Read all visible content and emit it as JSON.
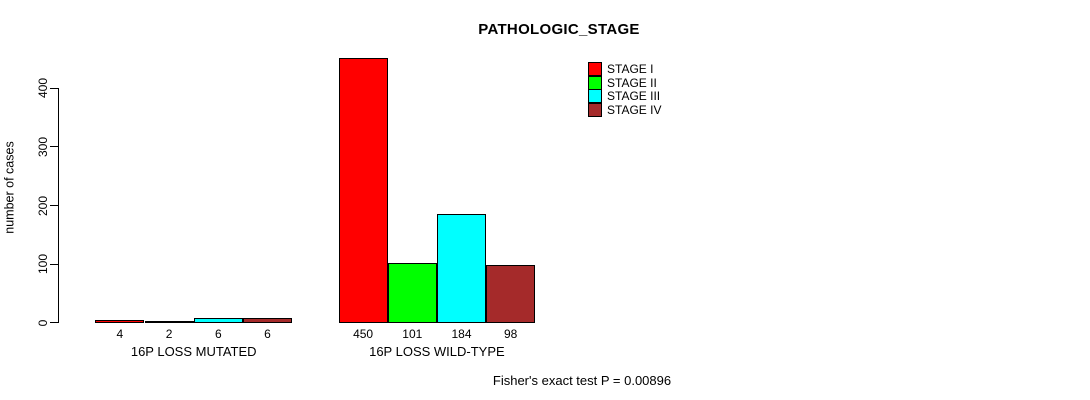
{
  "chart_data": {
    "type": "bar",
    "title": "PATHOLOGIC_STAGE",
    "xlabel": "",
    "ylabel": "number of cases",
    "ylim": [
      0,
      450
    ],
    "yticks": [
      0,
      100,
      200,
      300,
      400
    ],
    "grid": false,
    "legend_position": "top-right",
    "categories": [
      "16P LOSS MUTATED",
      "16P LOSS WILD-TYPE"
    ],
    "series": [
      {
        "name": "STAGE I",
        "color": "#FF0000",
        "values": [
          4,
          450
        ]
      },
      {
        "name": "STAGE II",
        "color": "#00FF00",
        "values": [
          2,
          101
        ]
      },
      {
        "name": "STAGE III",
        "color": "#00FFFF",
        "values": [
          6,
          184
        ]
      },
      {
        "name": "STAGE IV",
        "color": "#A52A2A",
        "values": [
          6,
          98
        ]
      }
    ],
    "bar_value_labels": true,
    "annotation": "Fisher's exact test P = 0.00896",
    "colors": {
      "background": "#FFFFFF",
      "axis": "#000000",
      "text": "#000000"
    }
  }
}
